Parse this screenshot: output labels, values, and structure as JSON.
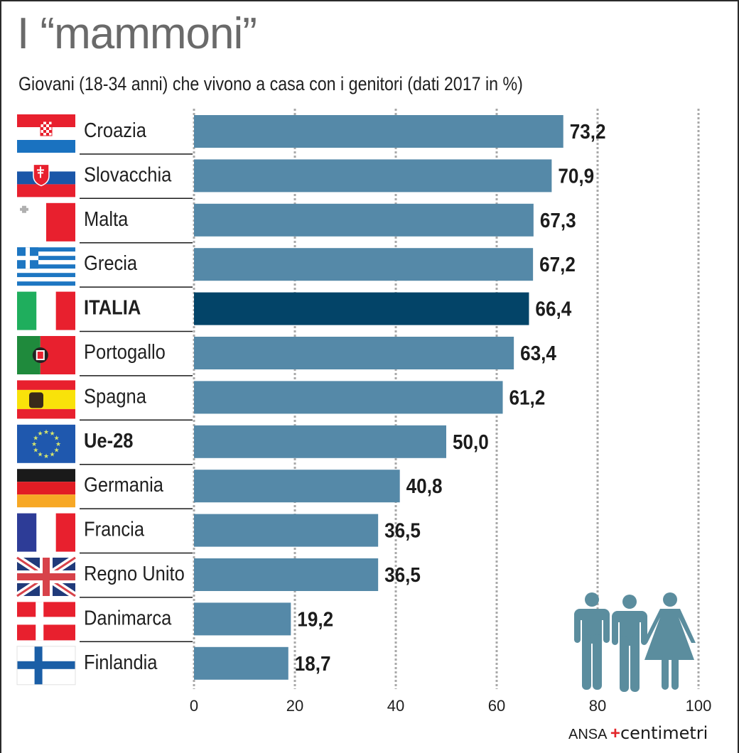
{
  "header": {
    "title": "I “mammoni”",
    "subtitle": "Giovani (18-34 anni) che vivono a casa con i genitori (dati 2017 in %)"
  },
  "chart_data": {
    "type": "bar",
    "orientation": "horizontal",
    "title": "I “mammoni”",
    "subtitle": "Giovani (18-34 anni) che vivono a casa con i genitori (dati 2017 in %)",
    "xlabel": "",
    "ylabel": "",
    "xlim": [
      0,
      100
    ],
    "xticks": [
      0,
      20,
      40,
      60,
      80,
      100
    ],
    "xtick_labels": [
      "0",
      "20",
      "40",
      "60",
      "80",
      "100"
    ],
    "grid": "vertical dotted",
    "categories": [
      "Croazia",
      "Slovacchia",
      "Malta",
      "Grecia",
      "ITALIA",
      "Portogallo",
      "Spagna",
      "Ue-28",
      "Germania",
      "Francia",
      "Regno Unito",
      "Danimarca",
      "Finlandia"
    ],
    "values": [
      73.2,
      70.9,
      67.3,
      67.2,
      66.4,
      63.4,
      61.2,
      50.0,
      40.8,
      36.5,
      36.5,
      19.2,
      18.7
    ],
    "value_labels": [
      "73,2",
      "70,9",
      "67,3",
      "67,2",
      "66,4",
      "63,4",
      "61,2",
      "50,0",
      "40,8",
      "36,5",
      "36,5",
      "19,2",
      "18,7"
    ],
    "highlighted": [
      "ITALIA"
    ],
    "bold_categories": [
      "ITALIA",
      "Ue-28"
    ],
    "flags": [
      "croatia-flag",
      "slovakia-flag",
      "malta-flag",
      "greece-flag",
      "italy-flag",
      "portugal-flag",
      "spain-flag",
      "eu-flag",
      "germany-flag",
      "france-flag",
      "uk-flag",
      "denmark-flag",
      "finland-flag"
    ],
    "colors": {
      "bar": "#5589a8",
      "bar_highlight": "#034468",
      "grid": "#a8a8a8",
      "people_icon": "#5b8d9e"
    }
  },
  "footer": {
    "source_brand": "ANSA",
    "source_product": "centimetri"
  },
  "decorations": {
    "people_icon": "family-people-icon"
  }
}
